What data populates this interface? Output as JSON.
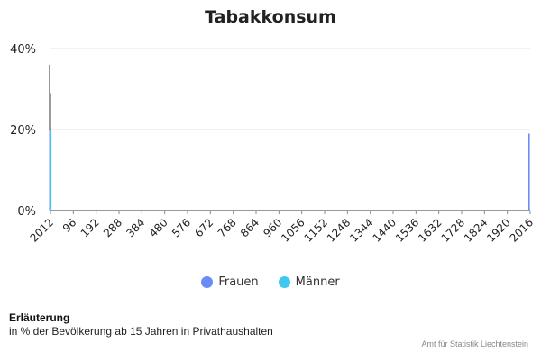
{
  "chart_data": {
    "type": "bar",
    "title": "Tabakkonsum",
    "xlabel": "",
    "ylabel": "",
    "y_tick_labels": [
      "0%",
      "20%",
      "40%"
    ],
    "y_ticks": [
      0,
      20,
      40
    ],
    "ylim": [
      0,
      40
    ],
    "x_tick_labels": [
      "2012",
      "96",
      "192",
      "288",
      "384",
      "480",
      "576",
      "672",
      "768",
      "864",
      "960",
      "1056",
      "1152",
      "1248",
      "1344",
      "1440",
      "1536",
      "1632",
      "1728",
      "1824",
      "1920",
      "2016"
    ],
    "x_ticks": [
      0,
      96,
      192,
      288,
      384,
      480,
      576,
      672,
      768,
      864,
      960,
      1056,
      1152,
      1248,
      1344,
      1440,
      1536,
      1632,
      1728,
      1824,
      1920,
      2016
    ],
    "xlim": [
      0,
      2016
    ],
    "grid": true,
    "legend_position": "bottom",
    "series": [
      {
        "name": "Frauen",
        "color": "#6b8cf7",
        "points": [
          {
            "x": 0,
            "y": 20
          },
          {
            "x": 2016,
            "y": 19
          }
        ]
      },
      {
        "name": "Männer",
        "color": "#40c8f0",
        "points": [
          {
            "x": 0,
            "y": 20
          }
        ]
      }
    ],
    "error_bars": [
      {
        "x": 0,
        "low": 20,
        "high": 36
      },
      {
        "x": 0,
        "low": 20,
        "high": 29
      }
    ]
  },
  "notes": {
    "title": "Erläuterung",
    "text": "in % der Bevölkerung ab 15 Jahren in Privathaushalten"
  },
  "credit": "Amt für Statistik Liechtenstein"
}
